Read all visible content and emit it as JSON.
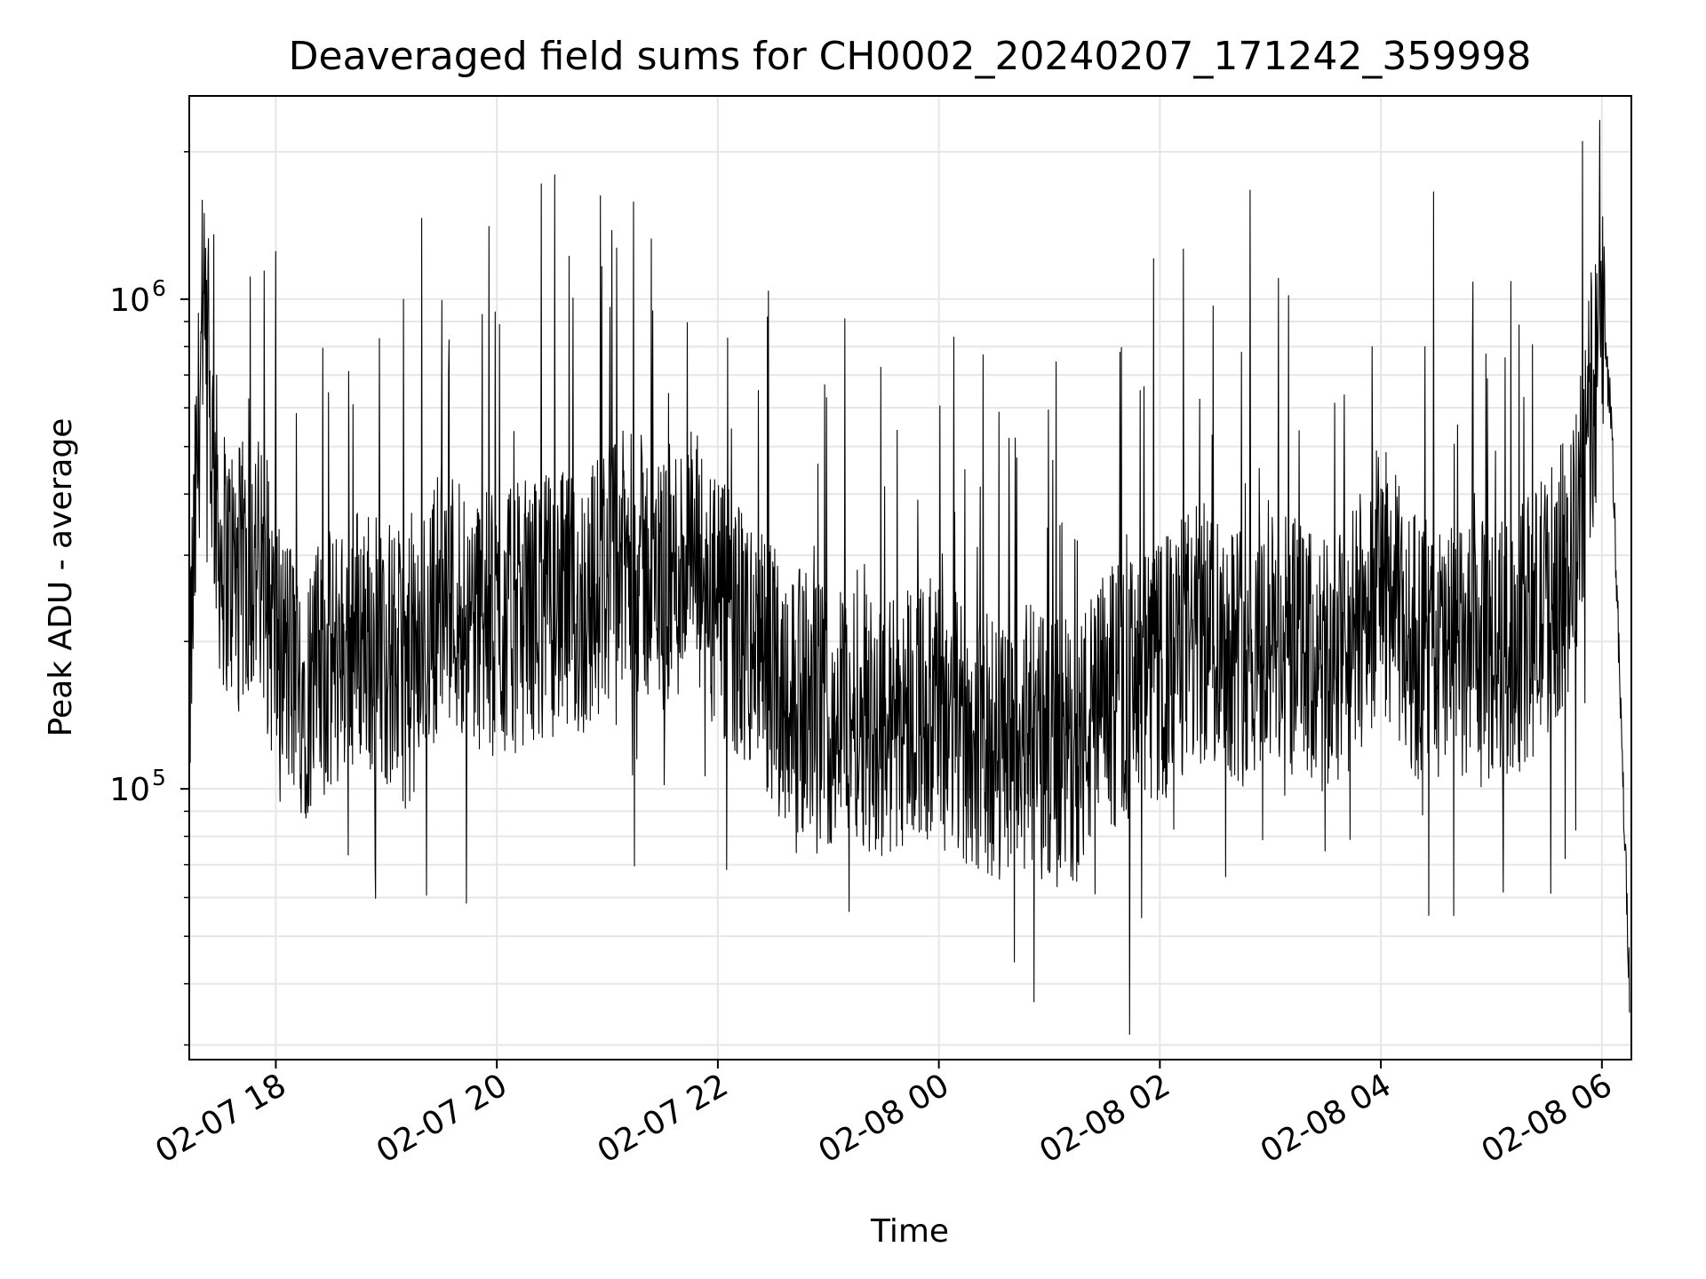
{
  "chart_data": {
    "type": "line",
    "title": "Deaveraged field sums for CH0002_20240207_171242_359998",
    "xlabel": "Time",
    "ylabel": "Peak ADU - average",
    "y_scale": "log",
    "ylim": [
      28000,
      2600000
    ],
    "xlim": [
      "2024-02-07 17:13",
      "2024-02-08 06:16"
    ],
    "grid": true,
    "line_color": "#000000",
    "grid_color": "#e6e6e6",
    "x_ticks": [
      {
        "value": "2024-02-07 18:00",
        "label": "02-07 18"
      },
      {
        "value": "2024-02-07 20:00",
        "label": "02-07 20"
      },
      {
        "value": "2024-02-07 22:00",
        "label": "02-07 22"
      },
      {
        "value": "2024-02-08 00:00",
        "label": "02-08 00"
      },
      {
        "value": "2024-02-08 02:00",
        "label": "02-08 02"
      },
      {
        "value": "2024-02-08 04:00",
        "label": "02-08 04"
      },
      {
        "value": "2024-02-08 06:00",
        "label": "02-08 06"
      }
    ],
    "y_ticks": [
      {
        "value": 100000,
        "base": "10",
        "exp": "5"
      },
      {
        "value": 1000000,
        "base": "10",
        "exp": "6"
      }
    ],
    "series": [
      {
        "x": [
          "2024-02-07 17:13",
          "2024-02-07 17:20",
          "2024-02-07 17:30",
          "2024-02-07 17:40",
          "2024-02-07 17:50",
          "2024-02-07 18:00",
          "2024-02-07 18:15",
          "2024-02-07 18:30",
          "2024-02-07 18:45",
          "2024-02-07 19:00",
          "2024-02-07 19:15",
          "2024-02-07 19:30",
          "2024-02-07 19:45",
          "2024-02-07 20:00",
          "2024-02-07 20:15",
          "2024-02-07 20:30",
          "2024-02-07 20:45",
          "2024-02-07 21:00",
          "2024-02-07 21:15",
          "2024-02-07 21:30",
          "2024-02-07 21:45",
          "2024-02-07 22:00",
          "2024-02-07 22:15",
          "2024-02-07 22:30",
          "2024-02-07 22:45",
          "2024-02-07 23:00",
          "2024-02-07 23:15",
          "2024-02-07 23:30",
          "2024-02-07 23:45",
          "2024-02-08 00:00",
          "2024-02-08 00:15",
          "2024-02-08 00:30",
          "2024-02-08 00:45",
          "2024-02-08 01:00",
          "2024-02-08 01:15",
          "2024-02-08 01:30",
          "2024-02-08 01:45",
          "2024-02-08 02:00",
          "2024-02-08 02:15",
          "2024-02-08 02:30",
          "2024-02-08 02:45",
          "2024-02-08 03:00",
          "2024-02-08 03:15",
          "2024-02-08 03:30",
          "2024-02-08 03:45",
          "2024-02-08 04:00",
          "2024-02-08 04:15",
          "2024-02-08 04:30",
          "2024-02-08 04:45",
          "2024-02-08 05:00",
          "2024-02-08 05:15",
          "2024-02-08 05:30",
          "2024-02-08 05:45",
          "2024-02-08 06:00",
          "2024-02-08 06:05",
          "2024-02-08 06:10",
          "2024-02-08 06:15"
        ],
        "y": [
          150000,
          900000,
          300000,
          270000,
          290000,
          200000,
          160000,
          180000,
          210000,
          190000,
          170000,
          260000,
          230000,
          210000,
          230000,
          240000,
          230000,
          280000,
          290000,
          260000,
          300000,
          230000,
          200000,
          170000,
          150000,
          140000,
          150000,
          130000,
          150000,
          140000,
          130000,
          120000,
          130000,
          120000,
          120000,
          150000,
          160000,
          170000,
          200000,
          210000,
          190000,
          200000,
          190000,
          170000,
          200000,
          280000,
          200000,
          190000,
          180000,
          190000,
          200000,
          240000,
          300000,
          900000,
          600000,
          150000,
          40000
        ]
      }
    ]
  }
}
